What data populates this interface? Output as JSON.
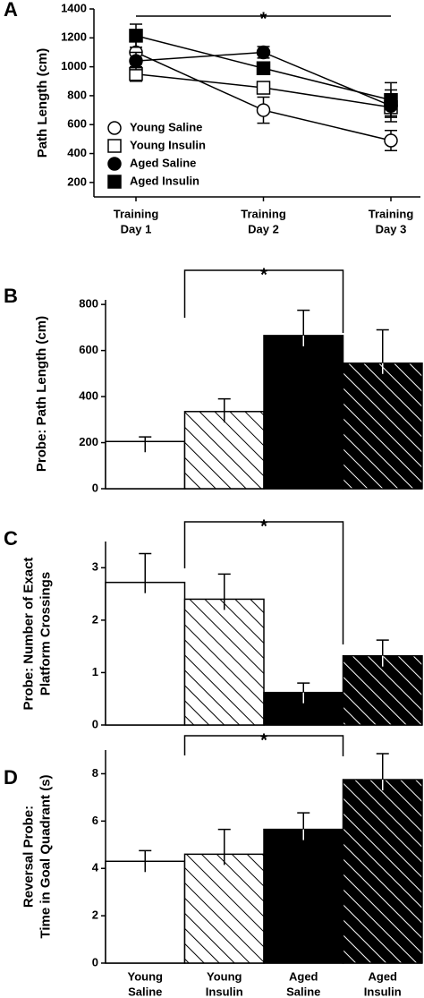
{
  "chart_data": [
    {
      "type": "line",
      "panel": "A",
      "y_label": [
        "Path Length (cm)"
      ],
      "categories": [
        [
          "Training",
          "Day 1"
        ],
        [
          "Training",
          "Day 2"
        ],
        [
          "Training",
          "Day 3"
        ]
      ],
      "ylim": [
        100,
        1400
      ],
      "yticks": [
        200,
        400,
        600,
        800,
        1000,
        1200,
        1400
      ],
      "annotation": "*",
      "series": [
        {
          "name": "Young Saline",
          "marker": "circle",
          "color": "#ffffff",
          "values": [
            1100,
            700,
            490
          ],
          "errors": [
            80,
            90,
            70
          ]
        },
        {
          "name": "Young Insulin",
          "marker": "square",
          "color": "#ffffff",
          "values": [
            950,
            855,
            720
          ],
          "errors": [
            50,
            40,
            60
          ]
        },
        {
          "name": "Aged Saline",
          "marker": "circle",
          "color": "#000000",
          "values": [
            1040,
            1100,
            730
          ],
          "errors": [
            60,
            40,
            110
          ]
        },
        {
          "name": "Aged Insulin",
          "marker": "square",
          "color": "#000000",
          "values": [
            1215,
            990,
            770
          ],
          "errors": [
            80,
            40,
            120
          ]
        }
      ]
    },
    {
      "type": "bar",
      "panel": "B",
      "y_label": [
        "Probe: Path Length (cm)"
      ],
      "ylim": [
        0,
        820
      ],
      "yticks": [
        0,
        200,
        400,
        600,
        800
      ],
      "annotation": "*",
      "values": [
        205,
        335,
        665,
        545
      ],
      "errors": [
        20,
        55,
        110,
        145
      ],
      "colors": [
        "#ffffff",
        "#ffffff",
        "#000000",
        "#000000"
      ],
      "hatched": [
        false,
        true,
        false,
        true
      ]
    },
    {
      "type": "bar",
      "panel": "C",
      "y_label": [
        "Probe: Number of Exact",
        "Platform Crossings"
      ],
      "ylim": [
        0,
        3.5
      ],
      "yticks": [
        0,
        1,
        2,
        3
      ],
      "annotation": "*",
      "values": [
        2.72,
        2.4,
        0.62,
        1.32
      ],
      "errors": [
        0.55,
        0.48,
        0.18,
        0.3
      ],
      "colors": [
        "#ffffff",
        "#ffffff",
        "#000000",
        "#000000"
      ],
      "hatched": [
        false,
        true,
        false,
        true
      ]
    },
    {
      "type": "bar",
      "panel": "D",
      "y_label": [
        "Reversal Probe:",
        "Time in Goal Quadrant (s)"
      ],
      "ylim": [
        0,
        9
      ],
      "yticks": [
        0,
        2,
        4,
        6,
        8
      ],
      "annotation": "*",
      "categories": [
        [
          "Young",
          "Saline"
        ],
        [
          "Young",
          "Insulin"
        ],
        [
          "Aged",
          "Saline"
        ],
        [
          "Aged",
          "Insulin"
        ]
      ],
      "values": [
        4.3,
        4.6,
        5.65,
        7.75
      ],
      "errors": [
        0.45,
        1.05,
        0.7,
        1.1
      ],
      "colors": [
        "#ffffff",
        "#ffffff",
        "#000000",
        "#000000"
      ],
      "hatched": [
        false,
        true,
        false,
        true
      ]
    }
  ]
}
